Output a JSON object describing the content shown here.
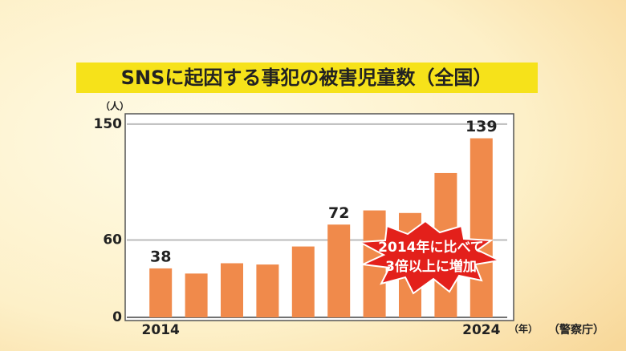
{
  "chart_data": {
    "type": "bar",
    "title": "SNSに起因する事犯の被害児童数（全国）",
    "y_unit": "（人）",
    "x_unit": "（年）",
    "source": "（警察庁）",
    "annotations": [
      "2014年に比べて",
      "3倍以上に増加"
    ],
    "categories": [
      "2014",
      null,
      null,
      null,
      null,
      null,
      null,
      null,
      null,
      "2024"
    ],
    "values": [
      38,
      34,
      42,
      41,
      55,
      72,
      83,
      81,
      112,
      139
    ],
    "value_labels": [
      "38",
      null,
      null,
      null,
      null,
      "72",
      null,
      null,
      null,
      "139"
    ],
    "color": "#f08a4b",
    "ylim": [
      0,
      158
    ],
    "yticks": [
      0,
      60,
      150
    ],
    "grid": true
  }
}
